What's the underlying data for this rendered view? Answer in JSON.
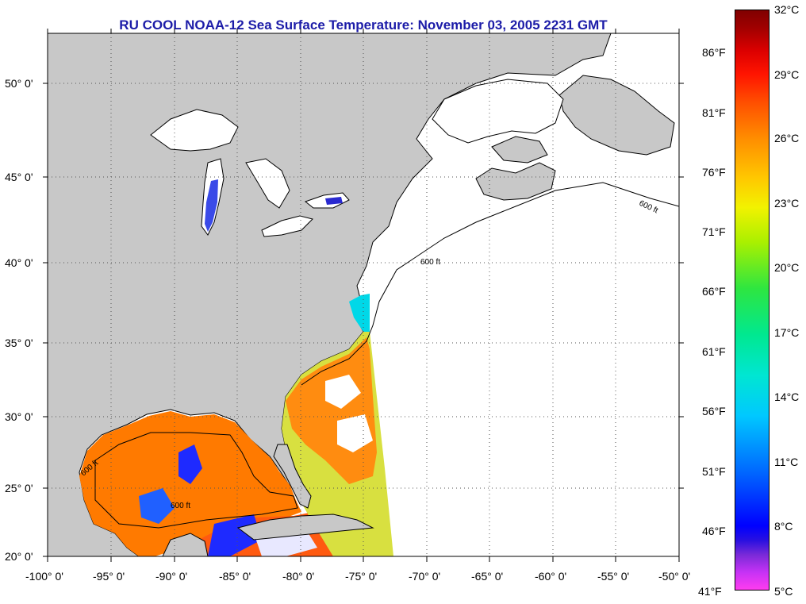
{
  "title": "RU COOL  NOAA-12  Sea Surface Temperature:  November 03, 2005 2231 GMT",
  "latitude_labels": [
    "50° 0'",
    "45° 0'",
    "40° 0'",
    "35° 0'",
    "30° 0'",
    "25° 0'",
    "20° 0'"
  ],
  "longitude_labels": [
    "-100° 0'",
    "-95° 0'",
    "-90° 0'",
    "-85° 0'",
    "-80° 0'",
    "-75° 0'",
    "-70° 0'",
    "-65° 0'",
    "-60° 0'",
    "-55° 0'",
    "-50° 0'"
  ],
  "isobath_label": "600 ft",
  "colorbar": {
    "celsius": [
      "32°C",
      "29°C",
      "26°C",
      "23°C",
      "20°C",
      "17°C",
      "14°C",
      "11°C",
      "8°C",
      "5°C"
    ],
    "fahrenheit": [
      "86°F",
      "81°F",
      "76°F",
      "71°F",
      "66°F",
      "61°F",
      "56°F",
      "51°F",
      "46°F",
      "41°F"
    ]
  },
  "colors": {
    "land": "#c8c8c8",
    "ocean_no_data": "#ffffff",
    "title": "#1c1ca8"
  }
}
